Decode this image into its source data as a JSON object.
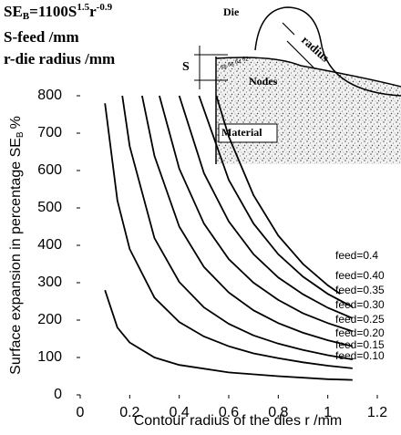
{
  "chart_data": {
    "type": "line",
    "formula": {
      "base": "SE",
      "sub": "B",
      "eq": "=1100S",
      "exp1": "1.5",
      "r": "r",
      "exp2": "-0.9"
    },
    "notes": [
      "S-feed /mm",
      "r-die radius /mm"
    ],
    "inset": {
      "die": "Die",
      "radius": "radius",
      "s": "S",
      "nodes": "Nodes",
      "material": "Material",
      "node_numbers": [
        "68",
        "66",
        "64",
        "62"
      ]
    },
    "xlabel": "Contour radius of the dies r /mm",
    "ylabel": {
      "text": "Surface expansion in percentage SE",
      "sub": "B",
      "unit": "%"
    },
    "xlim": [
      0,
      1.2
    ],
    "xticks": [
      0,
      0.2,
      0.4,
      0.6,
      0.8,
      1,
      1.2
    ],
    "ylim": [
      0,
      800
    ],
    "yticks": [
      0,
      100,
      200,
      300,
      400,
      500,
      600,
      700,
      800
    ],
    "color": "#000000",
    "series": [
      {
        "name": "feed=0.10",
        "x": [
          0.1,
          0.15,
          0.2,
          0.3,
          0.4,
          0.6,
          0.8,
          1.0,
          1.1
        ],
        "values": [
          280,
          180,
          140,
          100,
          80,
          60,
          50,
          42,
          40
        ]
      },
      {
        "name": "feed=0.15",
        "x": [
          0.1,
          0.15,
          0.2,
          0.3,
          0.4,
          0.5,
          0.6,
          0.7,
          0.8,
          0.9,
          1.0,
          1.1
        ],
        "values": [
          780,
          520,
          390,
          260,
          195,
          156,
          130,
          111,
          98,
          87,
          78,
          71
        ]
      },
      {
        "name": "feed=0.20",
        "x": [
          0.17,
          0.2,
          0.3,
          0.4,
          0.5,
          0.6,
          0.7,
          0.8,
          0.9,
          1.0,
          1.1
        ],
        "values": [
          800,
          665,
          419,
          302,
          234,
          190,
          159,
          137,
          120,
          106,
          95
        ]
      },
      {
        "name": "feed=0.25",
        "x": [
          0.25,
          0.3,
          0.4,
          0.5,
          0.6,
          0.7,
          0.8,
          0.9,
          1.0,
          1.1
        ],
        "values": [
          800,
          639,
          450,
          342,
          274,
          226,
          192,
          166,
          146,
          130
        ]
      },
      {
        "name": "feed=0.30",
        "x": [
          0.32,
          0.4,
          0.5,
          0.6,
          0.7,
          0.8,
          0.9,
          1.0,
          1.1
        ],
        "values": [
          800,
          605,
          458,
          363,
          300,
          254,
          218,
          192,
          170
        ]
      },
      {
        "name": "feed=0.35",
        "x": [
          0.4,
          0.5,
          0.6,
          0.7,
          0.8,
          0.9,
          1.0,
          1.1
        ],
        "values": [
          800,
          593,
          464,
          376,
          314,
          269,
          233,
          205
        ]
      },
      {
        "name": "feed=0.40",
        "x": [
          0.48,
          0.6,
          0.7,
          0.8,
          0.9,
          1.0,
          1.1
        ],
        "values": [
          800,
          575,
          458,
          376,
          316,
          270,
          235
        ]
      },
      {
        "name": "feed=0.4",
        "x": [
          0.55,
          0.6,
          0.7,
          0.8,
          0.9,
          1.0,
          1.05
        ],
        "values": [
          800,
          691,
          534,
          426,
          350,
          293,
          270
        ]
      }
    ]
  }
}
